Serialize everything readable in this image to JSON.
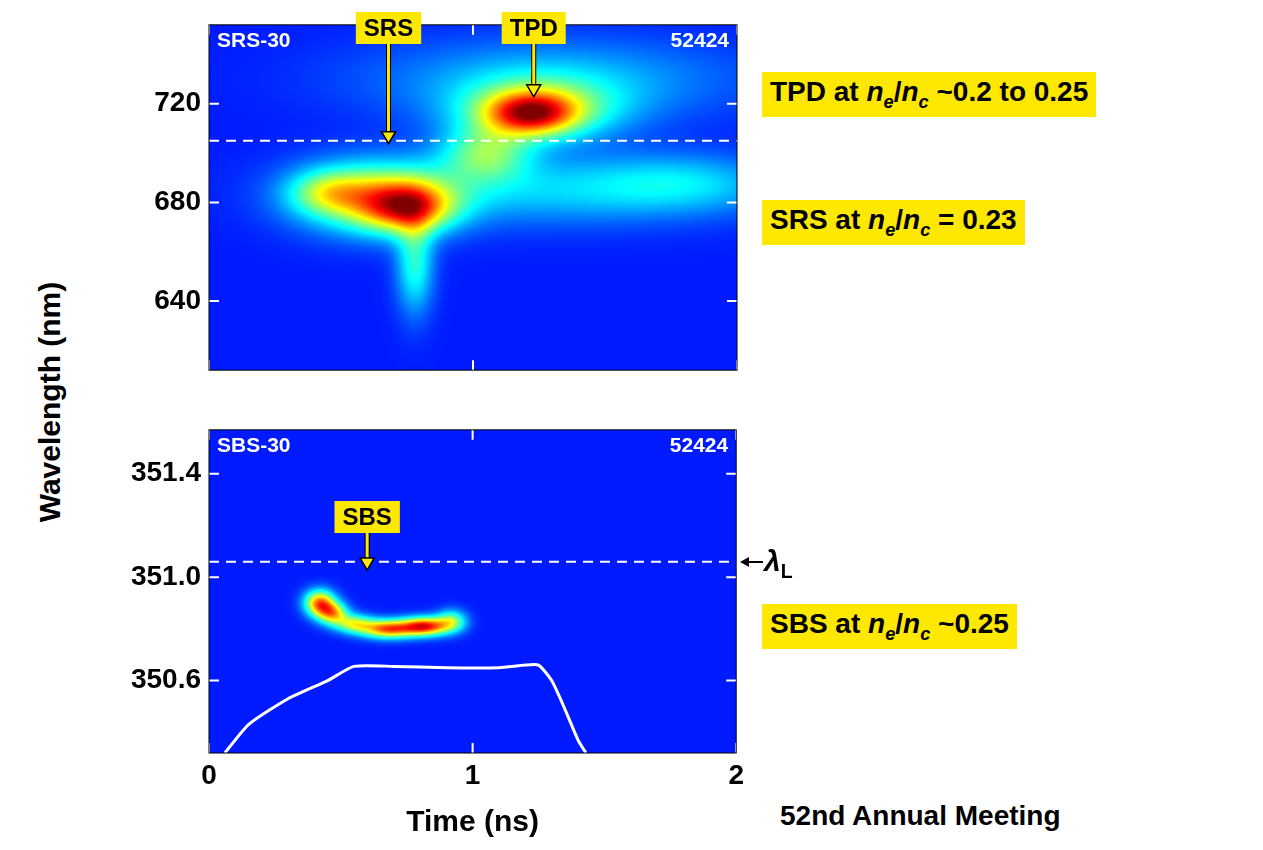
{
  "ylabel": "Wavelength (nm)",
  "footer": "52nd Annual Meeting",
  "chart_data": [
    {
      "type": "heatmap",
      "panel_label": "SRS-30",
      "shot": "52424",
      "xlim": [
        0,
        2
      ],
      "xticks": [
        0,
        1,
        2
      ],
      "ylim": [
        612,
        752
      ],
      "yticks": [
        640,
        680,
        720
      ],
      "grid": false,
      "tick_labels": "y",
      "reference_line": {
        "value": 705
      },
      "annotations": [
        {
          "text": "SRS",
          "x": 0.68,
          "y": 703
        },
        {
          "text": "TPD",
          "x": 1.23,
          "y": 722
        }
      ],
      "notes": [
        "TPD at ne/nc ~0.2 to 0.25",
        "SRS at ne/nc = 0.23"
      ],
      "components": [
        {
          "x": 0.75,
          "y": 678,
          "sx": 0.12,
          "sy": 7,
          "intensity": 0.55
        },
        {
          "x": 0.62,
          "y": 682,
          "sx": 0.2,
          "sy": 10,
          "intensity": 0.45
        },
        {
          "x": 0.45,
          "y": 684,
          "sx": 0.1,
          "sy": 6,
          "intensity": 0.25
        },
        {
          "x": 0.78,
          "y": 655,
          "sx": 0.05,
          "sy": 14,
          "intensity": 0.3
        },
        {
          "x": 1.3,
          "y": 685,
          "sx": 0.5,
          "sy": 10,
          "intensity": 0.2
        },
        {
          "x": 1.8,
          "y": 688,
          "sx": 0.25,
          "sy": 8,
          "intensity": 0.15
        },
        {
          "x": 1.22,
          "y": 716,
          "sx": 0.12,
          "sy": 6,
          "intensity": 0.6
        },
        {
          "x": 1.25,
          "y": 718,
          "sx": 0.22,
          "sy": 9,
          "intensity": 0.35
        },
        {
          "x": 1.05,
          "y": 700,
          "sx": 0.12,
          "sy": 8,
          "intensity": 0.35
        },
        {
          "x": 1.3,
          "y": 730,
          "sx": 0.5,
          "sy": 12,
          "intensity": 0.18
        }
      ]
    },
    {
      "type": "heatmap",
      "panel_label": "SBS-30",
      "shot": "52424",
      "xlabel": "Time (ns)",
      "xlim": [
        0,
        2
      ],
      "xticks": [
        0,
        1,
        2
      ],
      "ylim": [
        350.32,
        351.57
      ],
      "yticks": [
        350.6,
        {
          "value": 351,
          "label": "351.0"
        },
        351.4
      ],
      "grid": false,
      "tick_labels": true,
      "reference_line": {
        "value": 351.06,
        "label": "λL"
      },
      "annotations": [
        {
          "text": "SBS",
          "x": 0.6,
          "y": 351.02
        }
      ],
      "notes": [
        "SBS at ne/nc ~0.25"
      ],
      "components": [
        {
          "x": 0.42,
          "y": 350.9,
          "sx": 0.04,
          "sy": 0.035,
          "intensity": 0.7
        },
        {
          "x": 0.47,
          "y": 350.86,
          "sx": 0.04,
          "sy": 0.03,
          "intensity": 0.55
        },
        {
          "x": 0.55,
          "y": 350.82,
          "sx": 0.05,
          "sy": 0.025,
          "intensity": 0.45
        },
        {
          "x": 0.68,
          "y": 350.8,
          "sx": 0.07,
          "sy": 0.025,
          "intensity": 0.75
        },
        {
          "x": 0.82,
          "y": 350.81,
          "sx": 0.06,
          "sy": 0.025,
          "intensity": 0.8
        },
        {
          "x": 0.92,
          "y": 350.83,
          "sx": 0.04,
          "sy": 0.03,
          "intensity": 0.4
        }
      ],
      "pulse": {
        "color": "#ffffff",
        "x": [
          0.06,
          0.15,
          0.3,
          0.45,
          0.55,
          0.7,
          0.9,
          1.1,
          1.2,
          1.25,
          1.3,
          1.35,
          1.4,
          1.43
        ],
        "values": [
          350.32,
          350.43,
          350.53,
          350.6,
          350.655,
          350.655,
          350.65,
          350.65,
          350.66,
          350.66,
          350.6,
          350.49,
          350.37,
          350.32
        ]
      }
    }
  ]
}
